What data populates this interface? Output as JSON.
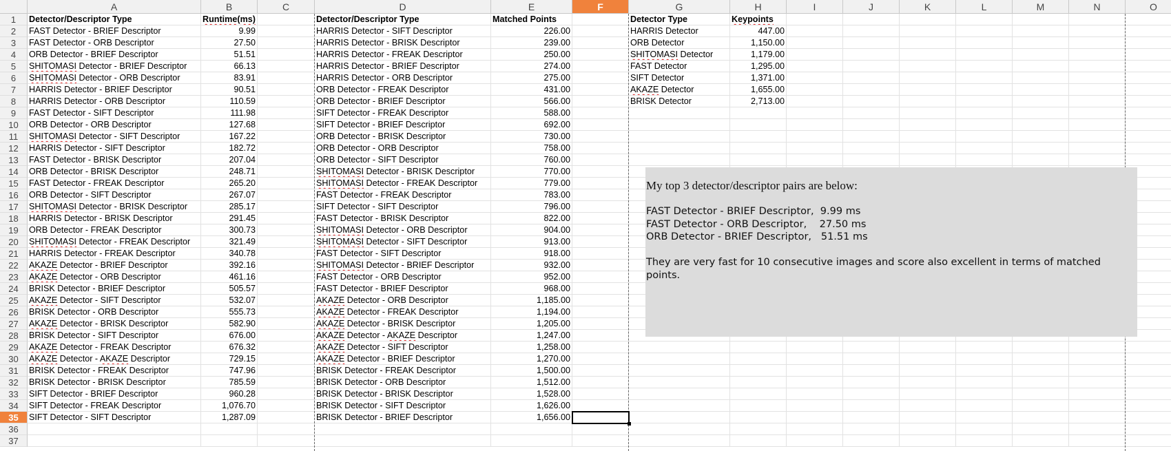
{
  "column_headers": [
    "A",
    "B",
    "C",
    "D",
    "E",
    "F",
    "G",
    "H",
    "I",
    "J",
    "K",
    "L",
    "M",
    "N",
    "O"
  ],
  "active_column": "F",
  "active_row": 35,
  "row_numbers": [
    1,
    2,
    3,
    4,
    5,
    6,
    7,
    8,
    9,
    10,
    11,
    12,
    13,
    14,
    15,
    16,
    17,
    18,
    19,
    20,
    21,
    22,
    23,
    24,
    25,
    26,
    27,
    28,
    29,
    30,
    31,
    32,
    33,
    34,
    35,
    36,
    37
  ],
  "runtime_table": {
    "header_type": "Detector/Descriptor Type",
    "header_value": "Runtime(ms)",
    "rows": [
      [
        "FAST Detector - BRIEF Descriptor",
        "9.99"
      ],
      [
        "FAST Detector - ORB Descriptor",
        "27.50"
      ],
      [
        "ORB Detector - BRIEF Descriptor",
        "51.51"
      ],
      [
        "SHITOMASI Detector - BRIEF Descriptor",
        "66.13"
      ],
      [
        "SHITOMASI Detector - ORB Descriptor",
        "83.91"
      ],
      [
        "HARRIS Detector - BRIEF Descriptor",
        "90.51"
      ],
      [
        "HARRIS Detector - ORB Descriptor",
        "110.59"
      ],
      [
        "FAST Detector - SIFT Descriptor",
        "111.98"
      ],
      [
        "ORB Detector - ORB Descriptor",
        "127.68"
      ],
      [
        "SHITOMASI Detector - SIFT Descriptor",
        "167.22"
      ],
      [
        "HARRIS Detector - SIFT Descriptor",
        "182.72"
      ],
      [
        "FAST Detector - BRISK Descriptor",
        "207.04"
      ],
      [
        "ORB Detector - BRISK Descriptor",
        "248.71"
      ],
      [
        "FAST Detector - FREAK Descriptor",
        "265.20"
      ],
      [
        "ORB Detector - SIFT Descriptor",
        "267.07"
      ],
      [
        "SHITOMASI Detector - BRISK Descriptor",
        "285.17"
      ],
      [
        "HARRIS Detector - BRISK Descriptor",
        "291.45"
      ],
      [
        "ORB Detector - FREAK Descriptor",
        "300.73"
      ],
      [
        "SHITOMASI Detector - FREAK Descriptor",
        "321.49"
      ],
      [
        "HARRIS Detector - FREAK Descriptor",
        "340.78"
      ],
      [
        "AKAZE Detector - BRIEF Descriptor",
        "392.16"
      ],
      [
        "AKAZE Detector - ORB Descriptor",
        "461.16"
      ],
      [
        "BRISK Detector - BRIEF Descriptor",
        "505.57"
      ],
      [
        "AKAZE Detector - SIFT Descriptor",
        "532.07"
      ],
      [
        "BRISK Detector - ORB Descriptor",
        "555.73"
      ],
      [
        "AKAZE Detector - BRISK Descriptor",
        "582.90"
      ],
      [
        "BRISK Detector - SIFT Descriptor",
        "676.00"
      ],
      [
        "AKAZE Detector - FREAK Descriptor",
        "676.32"
      ],
      [
        "AKAZE Detector - AKAZE Descriptor",
        "729.15"
      ],
      [
        "BRISK Detector - FREAK Descriptor",
        "747.96"
      ],
      [
        "BRISK Detector - BRISK Descriptor",
        "785.59"
      ],
      [
        "SIFT Detector - BRIEF Descriptor",
        "960.28"
      ],
      [
        "SIFT Detector - FREAK Descriptor",
        "1,076.70"
      ],
      [
        "SIFT Detector - SIFT Descriptor",
        "1,287.09"
      ]
    ]
  },
  "matched_table": {
    "header_type": "Detector/Descriptor Type",
    "header_value": "Matched Points",
    "rows": [
      [
        "HARRIS Detector - SIFT Descriptor",
        "226.00"
      ],
      [
        "HARRIS Detector - BRISK Descriptor",
        "239.00"
      ],
      [
        "HARRIS Detector - FREAK Descriptor",
        "250.00"
      ],
      [
        "HARRIS Detector - BRIEF Descriptor",
        "274.00"
      ],
      [
        "HARRIS Detector - ORB Descriptor",
        "275.00"
      ],
      [
        "ORB Detector - FREAK Descriptor",
        "431.00"
      ],
      [
        "ORB Detector - BRIEF Descriptor",
        "566.00"
      ],
      [
        "SIFT Detector - FREAK Descriptor",
        "588.00"
      ],
      [
        "SIFT Detector - BRIEF Descriptor",
        "692.00"
      ],
      [
        "ORB Detector - BRISK Descriptor",
        "730.00"
      ],
      [
        "ORB Detector - ORB Descriptor",
        "758.00"
      ],
      [
        "ORB Detector - SIFT Descriptor",
        "760.00"
      ],
      [
        "SHITOMASI Detector - BRISK Descriptor",
        "770.00"
      ],
      [
        "SHITOMASI Detector - FREAK Descriptor",
        "779.00"
      ],
      [
        "FAST Detector - FREAK Descriptor",
        "783.00"
      ],
      [
        "SIFT Detector - SIFT Descriptor",
        "796.00"
      ],
      [
        "FAST Detector - BRISK Descriptor",
        "822.00"
      ],
      [
        "SHITOMASI Detector - ORB Descriptor",
        "904.00"
      ],
      [
        "SHITOMASI Detector - SIFT Descriptor",
        "913.00"
      ],
      [
        "FAST Detector - SIFT Descriptor",
        "918.00"
      ],
      [
        "SHITOMASI Detector - BRIEF Descriptor",
        "932.00"
      ],
      [
        "FAST Detector - ORB Descriptor",
        "952.00"
      ],
      [
        "FAST Detector - BRIEF Descriptor",
        "968.00"
      ],
      [
        "AKAZE Detector - ORB Descriptor",
        "1,185.00"
      ],
      [
        "AKAZE Detector - FREAK Descriptor",
        "1,194.00"
      ],
      [
        "AKAZE Detector - BRISK Descriptor",
        "1,205.00"
      ],
      [
        "AKAZE Detector - AKAZE Descriptor",
        "1,247.00"
      ],
      [
        "AKAZE Detector - SIFT Descriptor",
        "1,258.00"
      ],
      [
        "AKAZE Detector - BRIEF Descriptor",
        "1,270.00"
      ],
      [
        "BRISK Detector - FREAK Descriptor",
        "1,500.00"
      ],
      [
        "BRISK Detector - ORB Descriptor",
        "1,512.00"
      ],
      [
        "BRISK Detector - BRISK Descriptor",
        "1,528.00"
      ],
      [
        "BRISK Detector - SIFT Descriptor",
        "1,626.00"
      ],
      [
        "BRISK Detector - BRIEF Descriptor",
        "1,656.00"
      ]
    ]
  },
  "keypoints_table": {
    "header_type": "Detector Type",
    "header_value": "Keypoints",
    "rows": [
      [
        "HARRIS Detector",
        "447.00"
      ],
      [
        "ORB Detector",
        "1,150.00"
      ],
      [
        "SHITOMASI Detector",
        "1,179.00"
      ],
      [
        "FAST Detector",
        "1,295.00"
      ],
      [
        "SIFT Detector",
        "1,371.00"
      ],
      [
        "AKAZE Detector",
        "1,655.00"
      ],
      [
        "BRISK Detector",
        "2,713.00"
      ]
    ]
  },
  "note": {
    "title": "My top 3 detector/descriptor pairs are below:",
    "lines": [
      "FAST Detector - BRIEF Descriptor,  9.99 ms",
      "FAST Detector - ORB Descriptor,    27.50 ms",
      "ORB Detector - BRIEF Descriptor,   51.51 ms"
    ],
    "paragraph": "They are very fast for 10 consecutive images and score also excellent in terms of matched points."
  }
}
